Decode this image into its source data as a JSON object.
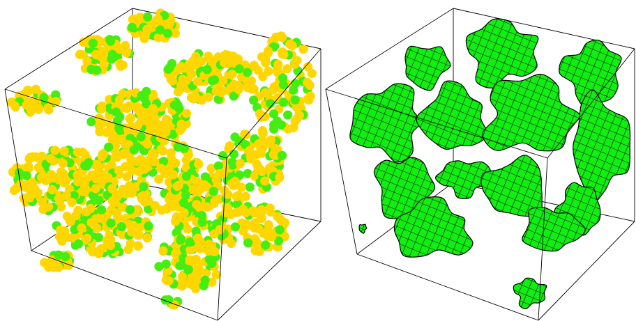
{
  "figure": {
    "panels": [
      {
        "name": "particle-cluster-cube",
        "representation": "spheres",
        "colors": {
          "primary": "#ffd700",
          "secondary": "#44ee11",
          "edge": "#000000"
        }
      },
      {
        "name": "isosurface-cube",
        "representation": "wireframe-mesh-surface",
        "colors": {
          "surface": "#11ee11",
          "mesh": "#000000",
          "edge": "#000000"
        }
      }
    ],
    "background": "#ffffff"
  }
}
